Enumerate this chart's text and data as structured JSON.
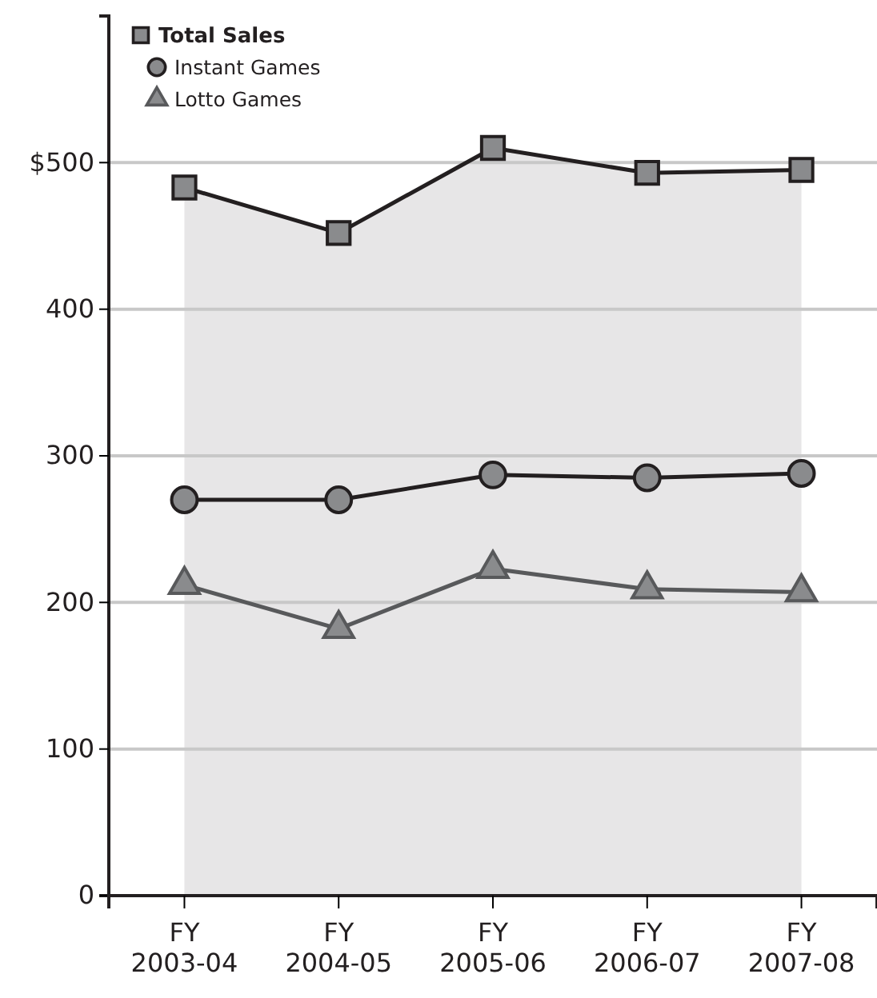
{
  "chart_data": {
    "type": "line",
    "categories": [
      "FY\n2003-04",
      "FY\n2004-05",
      "FY\n2005-06",
      "FY\n2006-07",
      "FY\n2007-08"
    ],
    "series": [
      {
        "name": "Total Sales",
        "type": "area",
        "color": "#231f20",
        "marker": "square",
        "values": [
          483,
          452,
          510,
          493,
          495
        ]
      },
      {
        "name": "Instant Games",
        "color": "#231f20",
        "marker": "circle",
        "values": [
          270,
          270,
          287,
          285,
          288
        ]
      },
      {
        "name": "Lotto Games",
        "color": "#58595b",
        "marker": "triangle",
        "values": [
          212,
          182,
          223,
          209,
          207
        ]
      }
    ],
    "ylim": [
      0,
      600
    ],
    "yticks": [
      0,
      100,
      200,
      300,
      400,
      {
        "value": 500,
        "label": "$500"
      }
    ],
    "grid": "y",
    "legend": "top left"
  }
}
